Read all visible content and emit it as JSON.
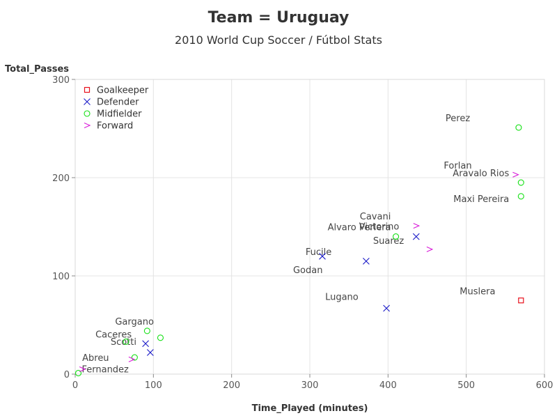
{
  "chart_data": {
    "type": "scatter",
    "title": "Team = Uruguay",
    "subtitle": "2010 World Cup Soccer / Fútbol Stats",
    "xlabel": "Time_Played (minutes)",
    "ylabel": "Total_Passes",
    "xlim": [
      0,
      600
    ],
    "ylim": [
      0,
      300
    ],
    "xticks": [
      "0",
      "100",
      "200",
      "300",
      "400",
      "500",
      "600"
    ],
    "yticks": [
      "0",
      "100",
      "200",
      "300"
    ],
    "grid": true,
    "legend_position": "top-left",
    "series": [
      {
        "name": "Goalkeeper",
        "marker": "square",
        "color": "#e8101c",
        "points": [
          {
            "label": "Muslera",
            "x": 570,
            "y": 75
          }
        ]
      },
      {
        "name": "Defender",
        "marker": "x",
        "color": "#1a1ac8",
        "points": [
          {
            "label": "Godan",
            "x": 316,
            "y": 120
          },
          {
            "label": "Fucile",
            "x": 372,
            "y": 115
          },
          {
            "label": "Lugano",
            "x": 398,
            "y": 67
          },
          {
            "label": "Victorino",
            "x": 436,
            "y": 140
          },
          {
            "label": "Caceres",
            "x": 90,
            "y": 31
          },
          {
            "label": "Scotti",
            "x": 96,
            "y": 22
          }
        ]
      },
      {
        "name": "Midfielder",
        "marker": "circle",
        "color": "#14e014",
        "points": [
          {
            "label": "Perez",
            "x": 567,
            "y": 251
          },
          {
            "label": "Aravalo Rios",
            "x": 570,
            "y": 195
          },
          {
            "label": "Maxi Pereira",
            "x": 570,
            "y": 181
          },
          {
            "label": "Alvaro Periera",
            "x": 410,
            "y": 140
          },
          {
            "label": "Gargano",
            "x": 92,
            "y": 44
          },
          {
            "label": "",
            "x": 109,
            "y": 37
          },
          {
            "label": "",
            "x": 65,
            "y": 33
          },
          {
            "label": "",
            "x": 76,
            "y": 17
          },
          {
            "label": "Fernandez",
            "x": 4,
            "y": 1
          }
        ]
      },
      {
        "name": "Forward",
        "marker": "chevron",
        "color": "#d81ad8",
        "points": [
          {
            "label": "Forlan",
            "x": 563,
            "y": 203
          },
          {
            "label": "Cavani",
            "x": 436,
            "y": 151
          },
          {
            "label": "Suarez",
            "x": 453,
            "y": 127
          },
          {
            "label": "",
            "x": 72,
            "y": 15
          },
          {
            "label": "Abreu",
            "x": 9,
            "y": 5
          }
        ]
      }
    ]
  }
}
